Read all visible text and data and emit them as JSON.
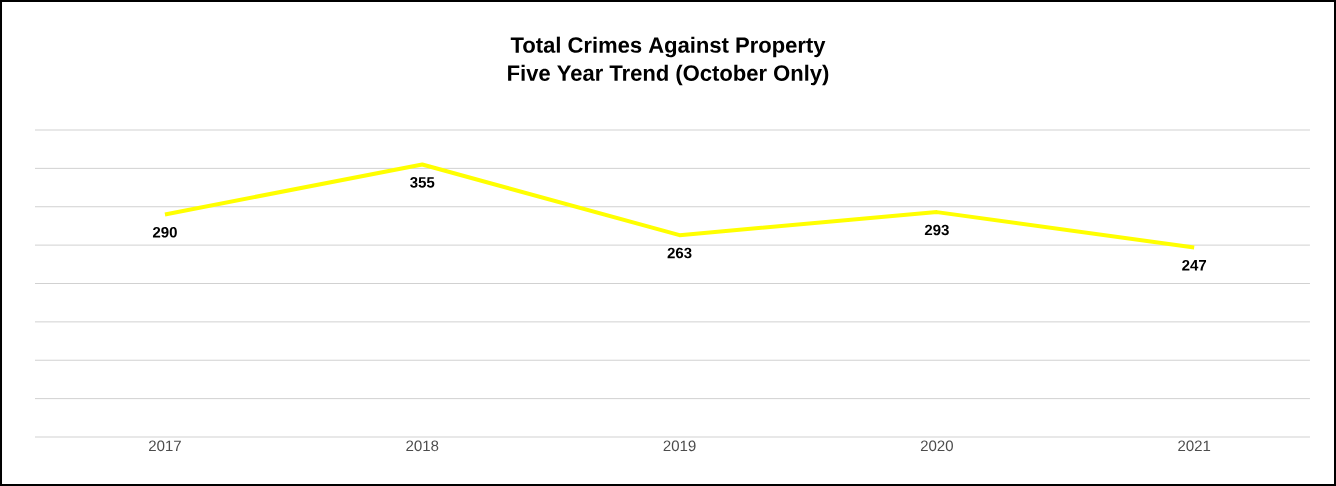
{
  "chart_data": {
    "type": "line",
    "title": "Total Crimes Against Property",
    "subtitle": "Five Year Trend (October Only)",
    "categories": [
      "2017",
      "2018",
      "2019",
      "2020",
      "2021"
    ],
    "values": [
      290,
      355,
      263,
      293,
      247
    ],
    "color": "#ffff00",
    "ylim": [
      0,
      400
    ],
    "yticks": [
      {
        "value": 0,
        "label": null
      },
      {
        "value": 50,
        "label": null
      },
      {
        "value": 100,
        "label": null
      },
      {
        "value": 150,
        "label": null
      },
      {
        "value": 200,
        "label": null
      },
      {
        "value": 250,
        "label": null
      },
      {
        "value": 300,
        "label": null
      },
      {
        "value": 350,
        "label": null
      },
      {
        "value": 400,
        "label": null
      }
    ],
    "grid": "y",
    "tick_labels": "x",
    "data_labels": true
  }
}
